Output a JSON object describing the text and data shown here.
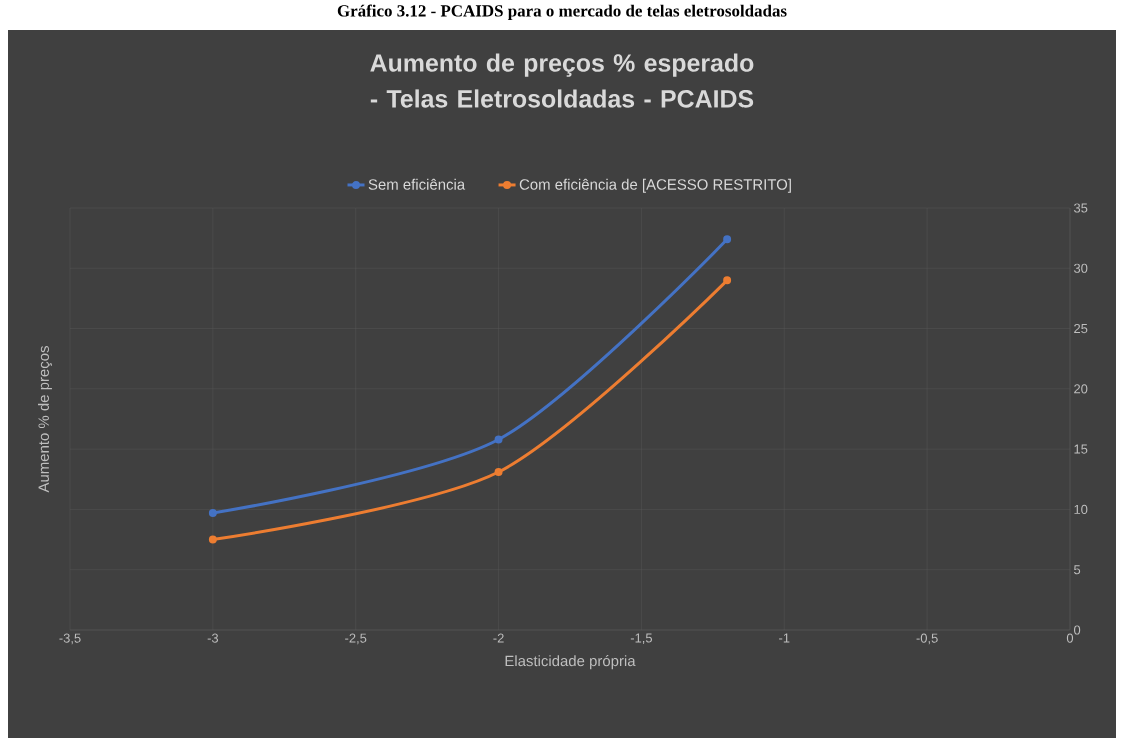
{
  "chart_data": {
    "type": "line",
    "title": "Aumento de preços % esperado - Telas Eletrosoldadas - PCAIDS",
    "xlabel": "Elasticidade própria",
    "ylabel": "Aumento % de preços",
    "annotations": [
      "Gráfico 3.12 - PCAIDS para o mercado de telas eletrosoldadas"
    ],
    "x": [
      -3,
      -2,
      -1.2
    ],
    "series": [
      {
        "name": "Sem eficiência",
        "color": "#4472c4",
        "values": [
          9.7,
          15.8,
          32.4
        ]
      },
      {
        "name": "Com eficiência de [ACESSO RESTRITO]",
        "color": "#ed7d31",
        "values": [
          7.5,
          13.1,
          29.0
        ]
      }
    ],
    "xlim": [
      -3.5,
      0
    ],
    "xticks": [
      {
        "value": -3.5,
        "label": "-3,5"
      },
      {
        "value": -3,
        "label": "-3"
      },
      {
        "value": -2.5,
        "label": "-2,5"
      },
      {
        "value": -2,
        "label": "-2"
      },
      {
        "value": -1.5,
        "label": "-1,5"
      },
      {
        "value": -1,
        "label": "-1"
      },
      {
        "value": -0.5,
        "label": "-0,5"
      },
      {
        "value": 0,
        "label": "0"
      }
    ],
    "ylim": [
      0,
      35
    ],
    "yticks": [
      0,
      5,
      10,
      15,
      20,
      25,
      30,
      35
    ],
    "grid": true,
    "legend": "top",
    "marker": "circle",
    "line_style": "solid"
  }
}
